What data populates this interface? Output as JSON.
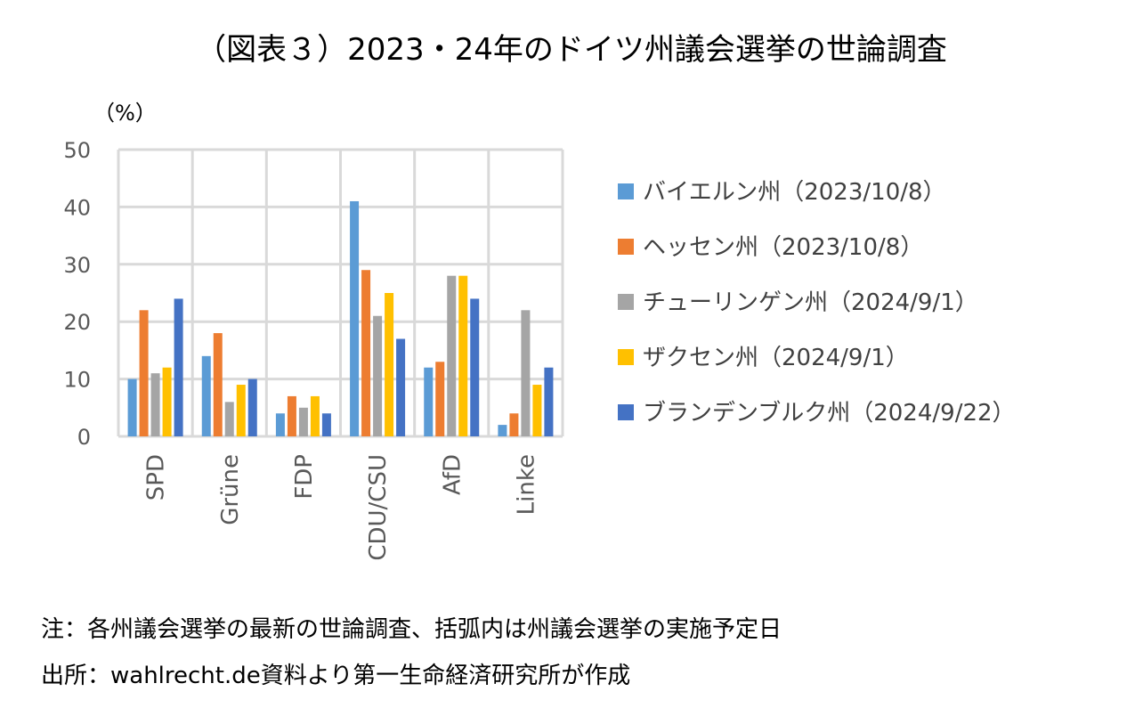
{
  "title": "（図表３）2023・24年のドイツ州議会選挙の世論調査",
  "notes": {
    "note": "注：各州議会選挙の最新の世論調査、括弧内は州議会選挙の実施予定日",
    "source": "出所：wahlrecht.de資料より第一生命経済研究所が作成"
  },
  "chart_data": {
    "type": "bar",
    "title": "（図表３）2023・24年のドイツ州議会選挙の世論調査",
    "ylabel": "（%）",
    "ylim": [
      0,
      50
    ],
    "yticks": [
      0,
      10,
      20,
      30,
      40,
      50
    ],
    "grid": true,
    "legend": "right",
    "categories": [
      "SPD",
      "Grüne",
      "FDP",
      "CDU/CSU",
      "AfD",
      "Linke"
    ],
    "series": [
      {
        "name": "バイエルン州（2023/10/8）",
        "color": "#5B9BD5",
        "values": [
          10,
          14,
          4,
          41,
          12,
          2
        ]
      },
      {
        "name": "ヘッセン州（2023/10/8）",
        "color": "#ED7D31",
        "values": [
          22,
          18,
          7,
          29,
          13,
          4
        ]
      },
      {
        "name": "チューリンゲン州（2024/9/1）",
        "color": "#A5A5A5",
        "values": [
          11,
          6,
          5,
          21,
          28,
          22
        ]
      },
      {
        "name": "ザクセン州（2024/9/1）",
        "color": "#FFC000",
        "values": [
          12,
          9,
          7,
          25,
          28,
          9
        ]
      },
      {
        "name": "ブランデンブルク州（2024/9/22）",
        "color": "#4472C4",
        "values": [
          24,
          10,
          4,
          17,
          24,
          12
        ]
      }
    ]
  }
}
